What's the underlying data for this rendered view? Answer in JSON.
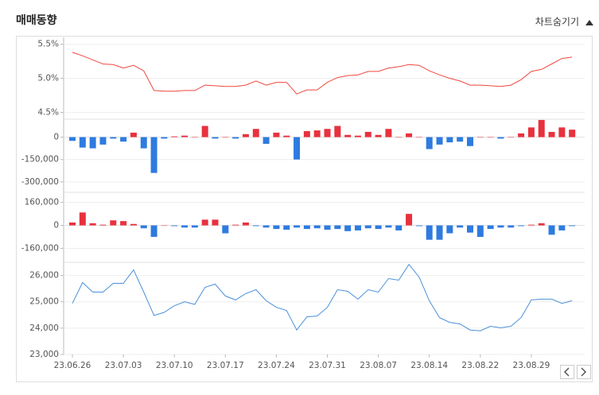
{
  "header": {
    "title": "매매동향",
    "toggle": "차트숨기기"
  },
  "chart_data": [
    {
      "type": "line",
      "color": "#f0483e",
      "ylim": [
        4.4,
        5.6
      ],
      "yticks": [
        {
          "value": 4.5,
          "label": "4.5%"
        },
        {
          "value": 5.0,
          "label": "5.0%"
        },
        {
          "value": 5.5,
          "label": "5.5%"
        }
      ],
      "values": [
        5.38,
        5.33,
        5.27,
        5.21,
        5.2,
        5.15,
        5.19,
        5.11,
        4.82,
        4.81,
        4.81,
        4.82,
        4.82,
        4.9,
        4.89,
        4.88,
        4.88,
        4.9,
        4.96,
        4.9,
        4.94,
        4.94,
        4.77,
        4.83,
        4.83,
        4.94,
        5.01,
        5.04,
        5.05,
        5.1,
        5.1,
        5.15,
        5.17,
        5.2,
        5.19,
        5.11,
        5.05,
        5.0,
        4.96,
        4.9,
        4.9,
        4.89,
        4.88,
        4.9,
        4.98,
        5.1,
        5.13,
        5.21,
        5.29,
        5.31
      ]
    },
    {
      "type": "bar",
      "positive_color": "#e8313e",
      "negative_color": "#2e7be0",
      "ylim": [
        -370000,
        120000
      ],
      "yticks": [
        0,
        {
          "value": -150000,
          "label": "-150,000"
        },
        {
          "value": -300000,
          "label": "-300,000"
        }
      ],
      "values": [
        -25000,
        -70000,
        -75000,
        -50000,
        -10000,
        -30000,
        30000,
        -75000,
        -240000,
        -10000,
        5000,
        10000,
        0,
        75000,
        -10000,
        0,
        -10000,
        20000,
        55000,
        -45000,
        30000,
        10000,
        -150000,
        40000,
        45000,
        55000,
        75000,
        15000,
        10000,
        35000,
        15000,
        55000,
        0,
        25000,
        0,
        -80000,
        -50000,
        -35000,
        -30000,
        -60000,
        0,
        0,
        -10000,
        0,
        25000,
        65000,
        115000,
        35000,
        65000,
        50000
      ]
    },
    {
      "type": "bar",
      "positive_color": "#e8313e",
      "negative_color": "#2e7be0",
      "ylim": [
        -240000,
        230000
      ],
      "yticks": [
        {
          "value": 160000,
          "label": "160,000"
        },
        0,
        {
          "value": -160000,
          "label": "-160,000"
        }
      ],
      "values": [
        20000,
        90000,
        15000,
        5000,
        35000,
        30000,
        10000,
        -20000,
        -80000,
        0,
        -5000,
        -15000,
        -15000,
        40000,
        40000,
        -55000,
        5000,
        20000,
        -5000,
        -15000,
        -25000,
        -30000,
        -15000,
        -25000,
        -20000,
        -30000,
        -25000,
        -40000,
        -35000,
        -20000,
        -25000,
        -15000,
        -35000,
        80000,
        -5000,
        -100000,
        -100000,
        -55000,
        -15000,
        -50000,
        -80000,
        -25000,
        -15000,
        -15000,
        -5000,
        5000,
        15000,
        -65000,
        -35000,
        -5000
      ]
    },
    {
      "type": "line",
      "color": "#4a90d9",
      "ylim": [
        23000,
        26500
      ],
      "yticks": [
        {
          "value": 26000,
          "label": "26,000"
        },
        {
          "value": 25000,
          "label": "25,000"
        },
        {
          "value": 24000,
          "label": "24,000"
        },
        {
          "value": 23000,
          "label": "23,000"
        }
      ],
      "categories": [
        "23.06.26",
        null,
        null,
        null,
        null,
        "23.07.03",
        null,
        null,
        null,
        null,
        "23.07.10",
        null,
        null,
        null,
        null,
        "23.07.17",
        null,
        null,
        null,
        null,
        "23.07.24",
        null,
        null,
        null,
        null,
        "23.07.31",
        null,
        null,
        null,
        null,
        "23.08.07",
        null,
        null,
        null,
        null,
        "23.08.14",
        null,
        null,
        null,
        null,
        "23.08.22",
        null,
        null,
        null,
        null,
        "23.08.29",
        null,
        null,
        null,
        null
      ],
      "values": [
        24940,
        25730,
        25370,
        25370,
        25700,
        25700,
        26210,
        25370,
        24480,
        24600,
        24850,
        25000,
        24900,
        25550,
        25670,
        25220,
        25070,
        25310,
        25460,
        25040,
        24790,
        24670,
        23930,
        24430,
        24460,
        24790,
        25460,
        25400,
        25100,
        25460,
        25370,
        25880,
        25820,
        26420,
        25940,
        25040,
        24400,
        24220,
        24160,
        23930,
        23900,
        24070,
        24010,
        24070,
        24400,
        25070,
        25100,
        25100,
        24940,
        25040
      ]
    }
  ]
}
